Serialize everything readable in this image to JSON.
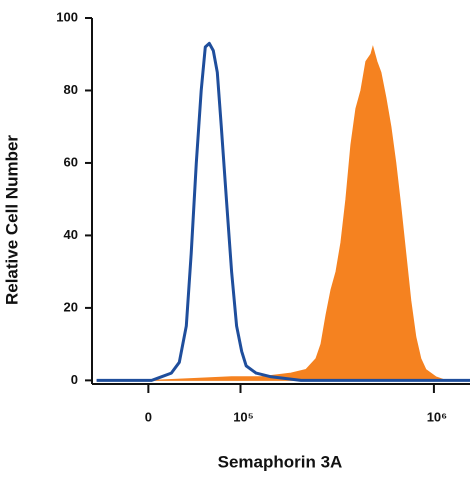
{
  "chart_data": {
    "type": "histogram-overlay",
    "x_label": "Semaphorin 3A",
    "y_label": "Relative Cell Number",
    "xlim": [
      -55000,
      1500000
    ],
    "xticks": [
      0,
      {
        "value": 100000,
        "label": "10⁵"
      },
      {
        "value": 1000000,
        "label": "10⁶"
      }
    ],
    "ylim": [
      -1,
      100
    ],
    "yticks": [
      0,
      20,
      40,
      60,
      80,
      100
    ],
    "series": [
      {
        "color": "#f58220",
        "fill": true,
        "x": [
          -50000,
          3000,
          40700,
          87600,
          132800,
          193600,
          231700,
          260700,
          276400,
          293000,
          310500,
          329000,
          348400,
          369000,
          390700,
          413700,
          438000,
          463600,
          490700,
          502000,
          525200,
          549500,
          581500,
          615300,
          651000,
          688800,
          728500,
          770600,
          815200,
          862300,
          912200,
          1020800,
          1141800,
          1500000
        ],
        "values": [
          0,
          0,
          0.5,
          1,
          1,
          2,
          3,
          6,
          10,
          18,
          25,
          30,
          38,
          50,
          65,
          75,
          80,
          88,
          90,
          92,
          88,
          85,
          78,
          70,
          60,
          48,
          35,
          22,
          12,
          6,
          3,
          1,
          0,
          0
        ]
      },
      {
        "color": "#1f4e9c",
        "fill": false,
        "x": [
          -50000,
          3000,
          12000,
          21200,
          28800,
          35700,
          40700,
          45900,
          51200,
          55600,
          60100,
          64700,
          69500,
          74400,
          80800,
          87600,
          94500,
          101800,
          108400,
          124300,
          151100,
          218400,
          1500000
        ],
        "values": [
          0,
          0,
          1,
          2,
          5,
          15,
          35,
          60,
          80,
          92,
          93,
          91,
          85,
          70,
          50,
          30,
          15,
          8,
          4,
          2,
          1,
          0,
          0
        ]
      }
    ]
  }
}
